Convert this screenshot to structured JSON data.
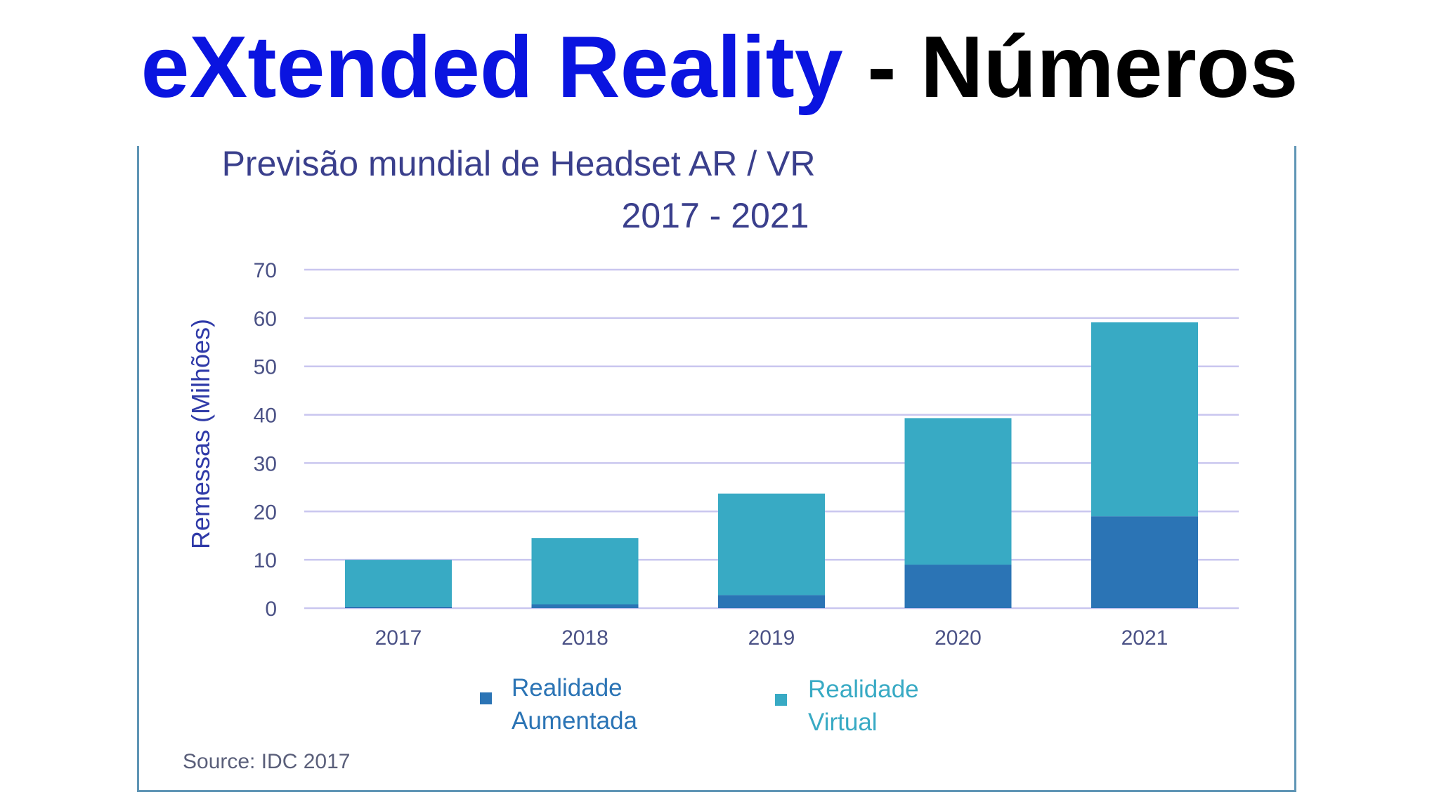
{
  "slide": {
    "title_part_1": "eXtended Reality",
    "title_part_2": " - Números"
  },
  "colors": {
    "title_blue": "#0a14e0",
    "title_black": "#000000",
    "ar": "#2b74b5",
    "vr": "#38aac4",
    "grid": "#c9c6ef",
    "frame": "#5f95b5",
    "axis_text": "#4b5286"
  },
  "chart_data": {
    "type": "bar",
    "stacked": true,
    "title": "Previsão mundial de Headset AR / VR",
    "subtitle": "2017 - 2021",
    "xlabel": "",
    "ylabel": "Remessas (Milhões)",
    "ylim": [
      0,
      70
    ],
    "yticks": [
      0,
      10,
      20,
      30,
      40,
      50,
      60,
      70
    ],
    "grid": true,
    "categories": [
      "2017",
      "2018",
      "2019",
      "2020",
      "2021"
    ],
    "series": [
      {
        "name": "Realidade Aumentada",
        "legend_lines": [
          "Realidade",
          "Aumentada"
        ],
        "color": "#2b74b5",
        "values": [
          0.3,
          0.8,
          2.7,
          9,
          19
        ]
      },
      {
        "name": "Realidade Virtual",
        "legend_lines": [
          "Realidade",
          "Virtual"
        ],
        "color": "#38aac4",
        "values": [
          9.7,
          13.7,
          21.0,
          30.3,
          40.1
        ]
      }
    ],
    "legend_position": "bottom",
    "source": "Source: IDC 2017"
  }
}
